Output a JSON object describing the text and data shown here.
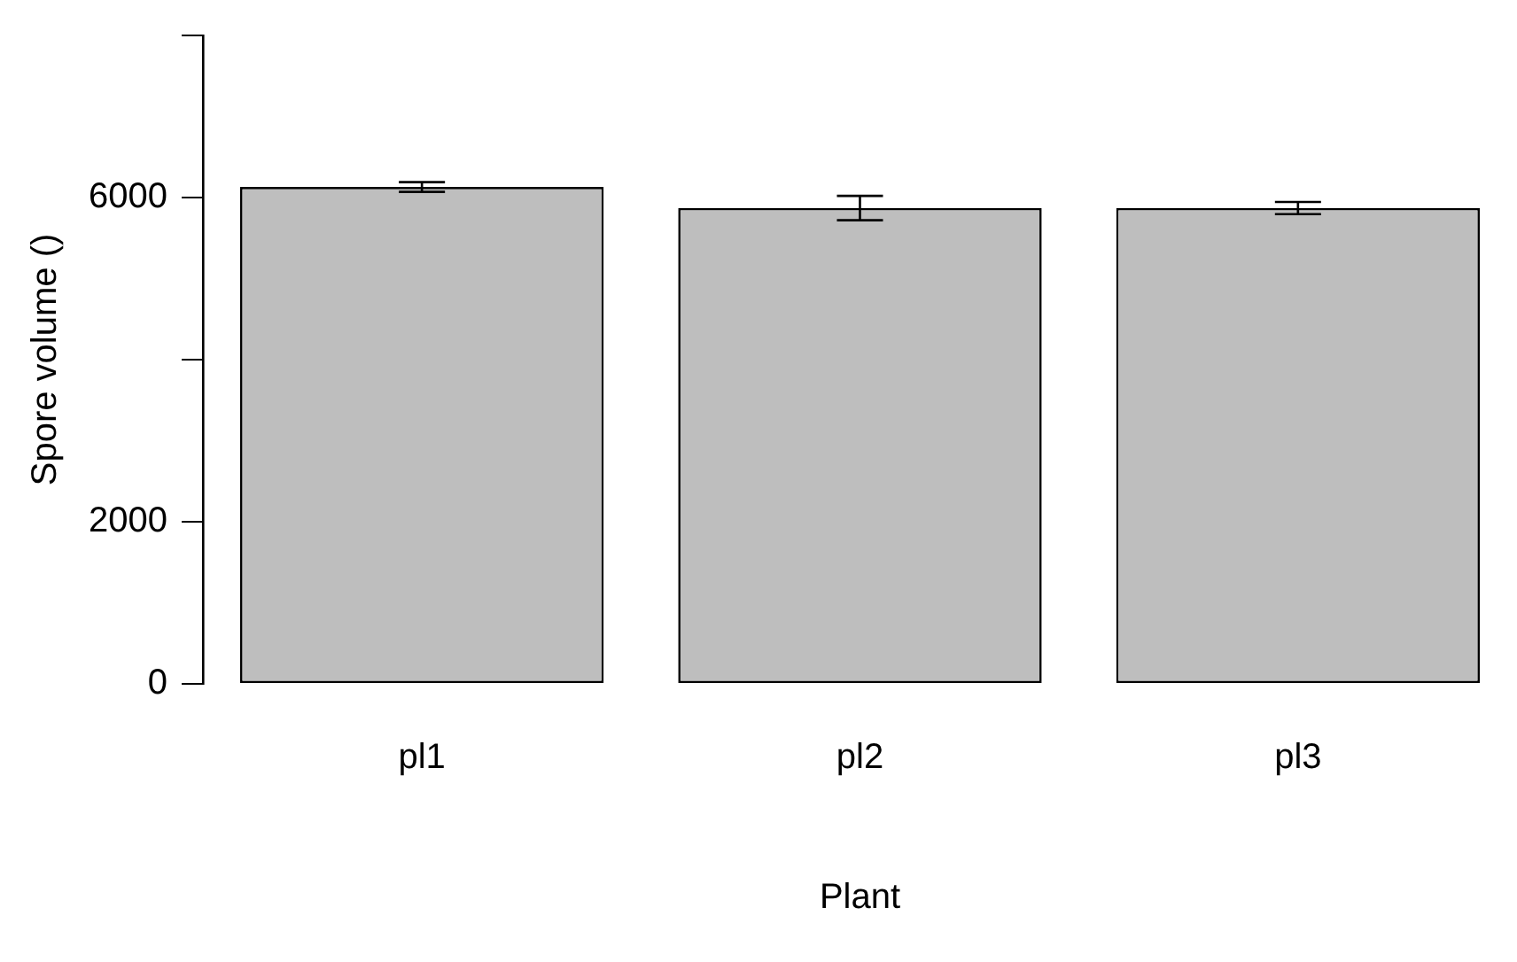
{
  "chart_data": {
    "type": "bar",
    "xlabel": "Plant",
    "ylabel": "Spore volume ()",
    "categories": [
      "pl1",
      "pl2",
      "pl3"
    ],
    "values": [
      6130,
      5870,
      5870
    ],
    "errors": [
      60,
      150,
      75
    ],
    "color": "#bebebe",
    "ylim": [
      0,
      8000
    ],
    "yticks": [
      0,
      2000,
      {
        "value": 4000,
        "label": null
      },
      6000,
      {
        "value": 8000,
        "label": null
      }
    ],
    "grid": false,
    "legend": false
  }
}
